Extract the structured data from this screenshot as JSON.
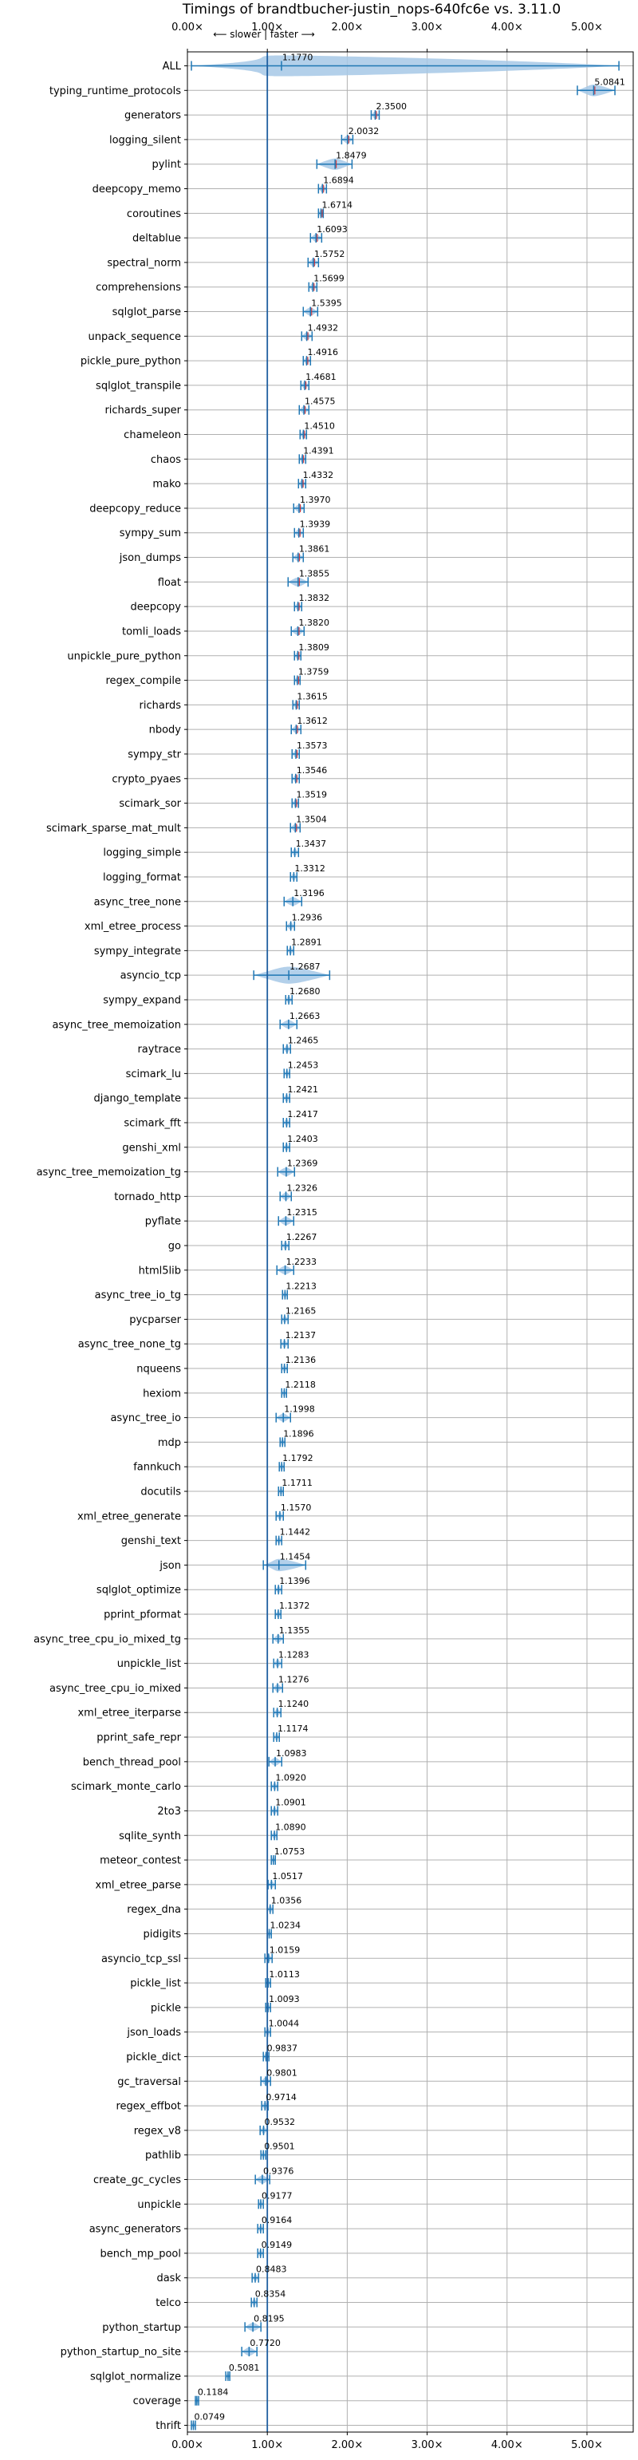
{
  "chart_data": {
    "type": "violin",
    "title": "Timings of brandtbucher-justin_nops-640fc6e vs. 3.11.0",
    "subtitle": "⟵ slower | faster ⟶",
    "xlim": [
      0.0,
      5.6
    ],
    "x_ticks": [
      0,
      1,
      2,
      3,
      4,
      5
    ],
    "x_tick_labels": [
      "0.00×",
      "1.00×",
      "2.00×",
      "3.00×",
      "4.00×",
      "5.00×"
    ],
    "reference_line": 1.0,
    "grid": true,
    "categories": [
      "ALL",
      "typing_runtime_protocols",
      "generators",
      "logging_silent",
      "pylint",
      "deepcopy_memo",
      "coroutines",
      "deltablue",
      "spectral_norm",
      "comprehensions",
      "sqlglot_parse",
      "unpack_sequence",
      "pickle_pure_python",
      "sqlglot_transpile",
      "richards_super",
      "chameleon",
      "chaos",
      "mako",
      "deepcopy_reduce",
      "sympy_sum",
      "json_dumps",
      "float",
      "deepcopy",
      "tomli_loads",
      "unpickle_pure_python",
      "regex_compile",
      "richards",
      "nbody",
      "sympy_str",
      "crypto_pyaes",
      "scimark_sor",
      "scimark_sparse_mat_mult",
      "logging_simple",
      "logging_format",
      "async_tree_none",
      "xml_etree_process",
      "sympy_integrate",
      "asyncio_tcp",
      "sympy_expand",
      "async_tree_memoization",
      "raytrace",
      "scimark_lu",
      "django_template",
      "scimark_fft",
      "genshi_xml",
      "async_tree_memoization_tg",
      "tornado_http",
      "pyflate",
      "go",
      "html5lib",
      "async_tree_io_tg",
      "pycparser",
      "async_tree_none_tg",
      "nqueens",
      "hexiom",
      "async_tree_io",
      "mdp",
      "fannkuch",
      "docutils",
      "xml_etree_generate",
      "genshi_text",
      "json",
      "sqlglot_optimize",
      "pprint_pformat",
      "async_tree_cpu_io_mixed_tg",
      "unpickle_list",
      "async_tree_cpu_io_mixed",
      "xml_etree_iterparse",
      "pprint_safe_repr",
      "bench_thread_pool",
      "scimark_monte_carlo",
      "2to3",
      "sqlite_synth",
      "meteor_contest",
      "xml_etree_parse",
      "regex_dna",
      "pidigits",
      "asyncio_tcp_ssl",
      "pickle_list",
      "pickle",
      "json_loads",
      "pickle_dict",
      "gc_traversal",
      "regex_effbot",
      "regex_v8",
      "pathlib",
      "create_gc_cycles",
      "unpickle",
      "async_generators",
      "bench_mp_pool",
      "dask",
      "telco",
      "python_startup",
      "python_startup_no_site",
      "sqlglot_normalize",
      "coverage",
      "thrift"
    ],
    "values": [
      1.177,
      5.0841,
      2.35,
      2.0032,
      1.8479,
      1.6894,
      1.6714,
      1.6093,
      1.5752,
      1.5699,
      1.5395,
      1.4932,
      1.4916,
      1.4681,
      1.4575,
      1.451,
      1.4391,
      1.4332,
      1.397,
      1.3939,
      1.3861,
      1.3855,
      1.3832,
      1.382,
      1.3809,
      1.3759,
      1.3615,
      1.3612,
      1.3573,
      1.3546,
      1.3519,
      1.3504,
      1.3437,
      1.3312,
      1.3196,
      1.2936,
      1.2891,
      1.2687,
      1.268,
      1.2663,
      1.2465,
      1.2453,
      1.2421,
      1.2417,
      1.2403,
      1.2369,
      1.2326,
      1.2315,
      1.2267,
      1.2233,
      1.2213,
      1.2165,
      1.2137,
      1.2136,
      1.2118,
      1.1998,
      1.1896,
      1.1792,
      1.1711,
      1.157,
      1.1442,
      1.1454,
      1.1396,
      1.1372,
      1.1355,
      1.1283,
      1.1276,
      1.124,
      1.1174,
      1.0983,
      1.092,
      1.0901,
      1.089,
      1.0753,
      1.0517,
      1.0356,
      1.0234,
      1.0159,
      1.0113,
      1.0093,
      1.0044,
      0.9837,
      0.9801,
      0.9714,
      0.9532,
      0.9501,
      0.9376,
      0.9177,
      0.9164,
      0.9149,
      0.8483,
      0.8354,
      0.8195,
      0.772,
      0.5081,
      0.1184,
      0.0749
    ],
    "value_labels": [
      "1.1770",
      "5.0841",
      "2.3500",
      "2.0032",
      "1.8479",
      "1.6894",
      "1.6714",
      "1.6093",
      "1.5752",
      "1.5699",
      "1.5395",
      "1.4932",
      "1.4916",
      "1.4681",
      "1.4575",
      "1.4510",
      "1.4391",
      "1.4332",
      "1.3970",
      "1.3939",
      "1.3861",
      "1.3855",
      "1.3832",
      "1.3820",
      "1.3809",
      "1.3759",
      "1.3615",
      "1.3612",
      "1.3573",
      "1.3546",
      "1.3519",
      "1.3504",
      "1.3437",
      "1.3312",
      "1.3196",
      "1.2936",
      "1.2891",
      "1.2687",
      "1.2680",
      "1.2663",
      "1.2465",
      "1.2453",
      "1.2421",
      "1.2417",
      "1.2403",
      "1.2369",
      "1.2326",
      "1.2315",
      "1.2267",
      "1.2233",
      "1.2213",
      "1.2165",
      "1.2137",
      "1.2136",
      "1.2118",
      "1.1998",
      "1.1896",
      "1.1792",
      "1.1711",
      "1.1570",
      "1.1442",
      "1.1454",
      "1.1396",
      "1.1372",
      "1.1355",
      "1.1283",
      "1.1276",
      "1.1240",
      "1.1174",
      "1.0983",
      "1.0920",
      "1.0901",
      "1.0890",
      "1.0753",
      "1.0517",
      "1.0356",
      "1.0234",
      "1.0159",
      "1.0113",
      "1.0093",
      "1.0044",
      "0.9837",
      "0.9801",
      "0.9714",
      "0.9532",
      "0.9501",
      "0.9376",
      "0.9177",
      "0.9164",
      "0.9149",
      "0.8483",
      "0.8354",
      "0.8195",
      "0.7720",
      "0.5081",
      "0.1184",
      "0.0749"
    ],
    "spreads": [
      [
        0.05,
        5.4
      ],
      [
        4.88,
        5.35
      ],
      [
        2.3,
        2.4
      ],
      [
        1.93,
        2.07
      ],
      [
        1.62,
        2.06
      ],
      [
        1.64,
        1.74
      ],
      [
        1.64,
        1.7
      ],
      [
        1.54,
        1.68
      ],
      [
        1.51,
        1.64
      ],
      [
        1.52,
        1.62
      ],
      [
        1.45,
        1.63
      ],
      [
        1.43,
        1.56
      ],
      [
        1.45,
        1.54
      ],
      [
        1.42,
        1.52
      ],
      [
        1.4,
        1.52
      ],
      [
        1.41,
        1.49
      ],
      [
        1.4,
        1.48
      ],
      [
        1.39,
        1.48
      ],
      [
        1.33,
        1.46
      ],
      [
        1.34,
        1.45
      ],
      [
        1.32,
        1.45
      ],
      [
        1.26,
        1.51
      ],
      [
        1.34,
        1.43
      ],
      [
        1.3,
        1.46
      ],
      [
        1.34,
        1.42
      ],
      [
        1.34,
        1.41
      ],
      [
        1.32,
        1.4
      ],
      [
        1.3,
        1.42
      ],
      [
        1.31,
        1.4
      ],
      [
        1.31,
        1.4
      ],
      [
        1.31,
        1.39
      ],
      [
        1.29,
        1.41
      ],
      [
        1.3,
        1.39
      ],
      [
        1.29,
        1.37
      ],
      [
        1.21,
        1.43
      ],
      [
        1.24,
        1.34
      ],
      [
        1.25,
        1.33
      ],
      [
        0.83,
        1.78
      ],
      [
        1.23,
        1.31
      ],
      [
        1.16,
        1.37
      ],
      [
        1.2,
        1.29
      ],
      [
        1.21,
        1.28
      ],
      [
        1.2,
        1.28
      ],
      [
        1.2,
        1.28
      ],
      [
        1.2,
        1.28
      ],
      [
        1.13,
        1.34
      ],
      [
        1.16,
        1.3
      ],
      [
        1.14,
        1.33
      ],
      [
        1.18,
        1.27
      ],
      [
        1.12,
        1.33
      ],
      [
        1.19,
        1.25
      ],
      [
        1.18,
        1.26
      ],
      [
        1.17,
        1.26
      ],
      [
        1.18,
        1.25
      ],
      [
        1.18,
        1.24
      ],
      [
        1.11,
        1.29
      ],
      [
        1.16,
        1.22
      ],
      [
        1.15,
        1.21
      ],
      [
        1.14,
        1.2
      ],
      [
        1.11,
        1.2
      ],
      [
        1.11,
        1.18
      ],
      [
        0.95,
        1.48
      ],
      [
        1.1,
        1.18
      ],
      [
        1.1,
        1.17
      ],
      [
        1.07,
        1.2
      ],
      [
        1.08,
        1.18
      ],
      [
        1.07,
        1.19
      ],
      [
        1.08,
        1.17
      ],
      [
        1.08,
        1.15
      ],
      [
        1.02,
        1.18
      ],
      [
        1.05,
        1.13
      ],
      [
        1.05,
        1.13
      ],
      [
        1.05,
        1.12
      ],
      [
        1.05,
        1.1
      ],
      [
        1.01,
        1.1
      ],
      [
        1.0,
        1.07
      ],
      [
        1.0,
        1.05
      ],
      [
        0.97,
        1.06
      ],
      [
        0.98,
        1.04
      ],
      [
        0.98,
        1.04
      ],
      [
        0.97,
        1.04
      ],
      [
        0.95,
        1.02
      ],
      [
        0.92,
        1.04
      ],
      [
        0.93,
        1.01
      ],
      [
        0.91,
        1.0
      ],
      [
        0.92,
        0.98
      ],
      [
        0.85,
        1.03
      ],
      [
        0.89,
        0.95
      ],
      [
        0.88,
        0.95
      ],
      [
        0.88,
        0.95
      ],
      [
        0.81,
        0.89
      ],
      [
        0.8,
        0.87
      ],
      [
        0.72,
        0.92
      ],
      [
        0.68,
        0.87
      ],
      [
        0.48,
        0.53
      ],
      [
        0.1,
        0.14
      ],
      [
        0.05,
        0.1
      ]
    ],
    "colors": {
      "violin": "#a6c8e6",
      "violin_edge": "#1f77b4",
      "reference": "#1f5fa0",
      "grid": "#b0b0b0",
      "median_mark": "#d62728",
      "text": "#000000"
    }
  }
}
